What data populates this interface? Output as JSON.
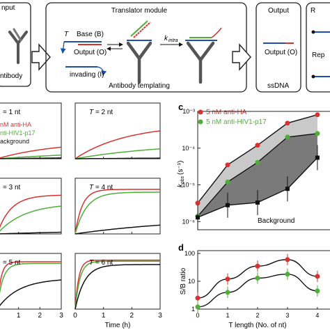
{
  "top_panels": {
    "input_label": "nput",
    "antibody_label": "ntibody",
    "translator_title": "Translator module",
    "t_label": "T",
    "base_label": "Base (B)",
    "output_label": "Output (O)",
    "invading_label": "invading (I)",
    "k_intra_label": "k",
    "k_intra_sub": "intra",
    "antibody_templating_label": "Antibody templating",
    "output_title": "Output",
    "output_o_label": "Output (O)",
    "ssdna_label": "ssDNA",
    "reporter_title": "R",
    "rep_label": "Rep"
  },
  "panel_b": {
    "subpanels": [
      {
        "label": "= 1 nt"
      },
      {
        "label": "T = 2 nt"
      },
      {
        "label": "= 3 nt"
      },
      {
        "label": "T = 4 nt"
      },
      {
        "label": "= 5 nt"
      },
      {
        "label": "T = 6 nt"
      }
    ],
    "legend": [
      "nM anti-HA",
      "nti-HIV1-p17",
      "ackground"
    ],
    "x_ticks": [
      "0",
      "1",
      "2",
      "3"
    ],
    "x_ticks_partial": [
      "1",
      "2",
      "3"
    ],
    "x_label": "Time (h)"
  },
  "panel_c": {
    "letter": "c",
    "legend": [
      "5 nM anti-HA",
      "5 nM anti-HIV1-p17"
    ],
    "background_label": "Background",
    "y_label": "k",
    "y_label_sub": "obs",
    "y_label_unit": "(s⁻¹)",
    "y_ticks": [
      "10⁻³",
      "10⁻⁴",
      "10⁻⁵",
      "10⁻⁶"
    ],
    "colors": {
      "anti_ha": "#d7322f",
      "anti_hiv": "#4fae3a",
      "background": "#000000"
    }
  },
  "panel_d": {
    "letter": "d",
    "y_label": "S/B ratio",
    "y_ticks": [
      "100",
      "10",
      "1"
    ],
    "x_ticks": [
      "0",
      "1",
      "2",
      "3",
      "4"
    ],
    "x_label": "T length (No. of nt)"
  },
  "chart_data": [
    {
      "type": "line",
      "title": "",
      "xlabel": "T length (No. of nt)",
      "ylabel": "kobs (s⁻¹)",
      "y_scale": "log",
      "x": [
        0,
        1,
        2,
        3,
        4
      ],
      "ylim": [
        6e-07,
        0.001
      ],
      "series": [
        {
          "name": "5 nM anti-HA",
          "color": "#d7322f",
          "values": [
            3.2e-06,
            3.5e-05,
            0.00012,
            0.00048,
            0.00081
          ]
        },
        {
          "name": "5 nM anti-HIV1-p17",
          "color": "#4fae3a",
          "values": [
            1.4e-06,
            1.2e-05,
            4.1e-05,
            0.0002,
            0.00025
          ]
        },
        {
          "name": "Background",
          "color": "#000000",
          "values": [
            1.3e-06,
            2.8e-06,
            3.3e-06,
            7.8e-06,
            5.5e-05
          ]
        }
      ]
    },
    {
      "type": "line",
      "title": "",
      "xlabel": "T length (No. of nt)",
      "ylabel": "S/B ratio",
      "y_scale": "log",
      "x": [
        0,
        1,
        2,
        3,
        4
      ],
      "ylim": [
        1,
        100
      ],
      "series": [
        {
          "name": "anti-HA",
          "color": "#d7322f",
          "values": [
            2.5,
            12,
            35,
            60,
            15
          ]
        },
        {
          "name": "anti-HIV1-p17",
          "color": "#4fae3a",
          "values": [
            1.2,
            4,
            13,
            18,
            4.5
          ]
        }
      ]
    }
  ]
}
